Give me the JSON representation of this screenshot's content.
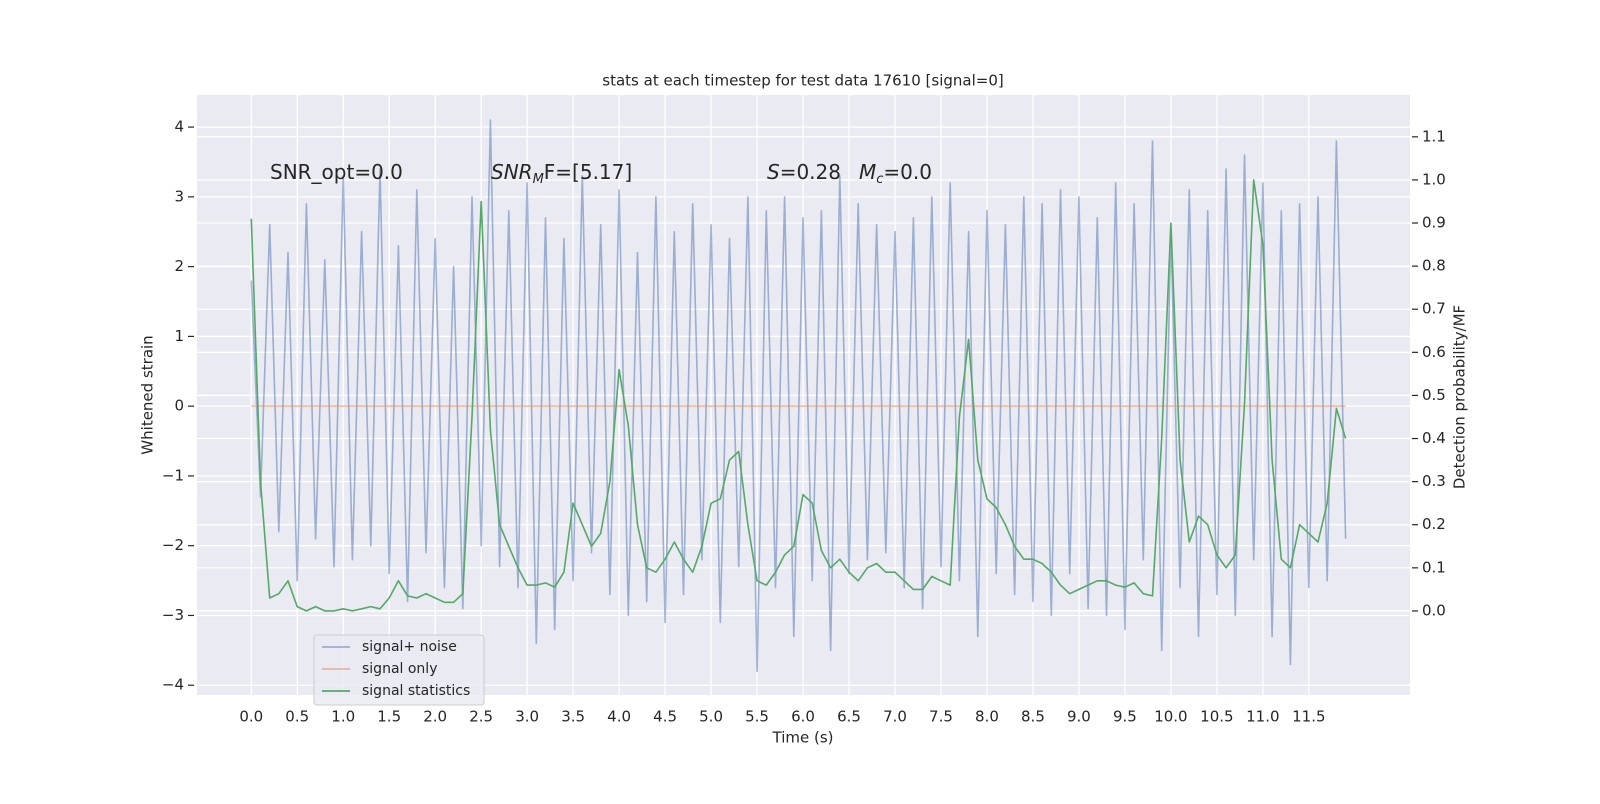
{
  "chart_data": {
    "type": "line",
    "title": "stats at each timestep for test data 17610 [signal=0]",
    "x_label": "Time (s)",
    "y_label": "Whitened strain",
    "y2_label": "Detection probability/MF",
    "annotations": [
      {
        "text": "SNR_opt=0.0"
      },
      {
        "base": "SNR",
        "sub": "M",
        "rest": "F=[5.17]"
      },
      {
        "base": "S",
        "rest": "=0.28"
      },
      {
        "base": "M",
        "sub": "c",
        "rest": "=0.0"
      }
    ],
    "x": [
      0,
      0.1,
      0.2,
      0.3,
      0.4,
      0.5,
      0.6,
      0.7,
      0.8,
      0.9,
      1,
      1.1,
      1.2,
      1.3,
      1.4,
      1.5,
      1.6,
      1.7,
      1.8,
      1.9,
      2,
      2.1,
      2.2,
      2.3,
      2.4,
      2.5,
      2.6,
      2.7,
      2.8,
      2.9,
      3,
      3.1,
      3.2,
      3.3,
      3.4,
      3.5,
      3.6,
      3.7,
      3.8,
      3.9,
      4,
      4.1,
      4.2,
      4.3,
      4.4,
      4.5,
      4.6,
      4.7,
      4.8,
      4.9,
      5,
      5.1,
      5.2,
      5.3,
      5.4,
      5.5,
      5.6,
      5.7,
      5.8,
      5.9,
      6,
      6.1,
      6.2,
      6.3,
      6.4,
      6.5,
      6.6,
      6.7,
      6.8,
      6.9,
      7,
      7.1,
      7.2,
      7.3,
      7.4,
      7.5,
      7.6,
      7.7,
      7.8,
      7.9,
      8,
      8.1,
      8.2,
      8.3,
      8.4,
      8.5,
      8.6,
      8.7,
      8.8,
      8.9,
      9,
      9.1,
      9.2,
      9.3,
      9.4,
      9.5,
      9.6,
      9.7,
      9.8,
      9.9,
      10,
      10.1,
      10.2,
      10.3,
      10.4,
      10.5,
      10.6,
      10.7,
      10.8,
      10.9,
      11,
      11.1,
      11.2,
      11.3,
      11.4,
      11.5,
      11.6,
      11.7,
      11.8,
      11.9
    ],
    "series": [
      {
        "name": "signal+ noise",
        "color": "#4c72b0",
        "opacity": 0.5,
        "values": [
          1.8,
          -1.3,
          2.6,
          -1.8,
          2.2,
          -2.5,
          2.9,
          -1.9,
          2.1,
          -2.3,
          3.3,
          -2.2,
          2.5,
          -2.0,
          3.4,
          -2.4,
          2.3,
          -2.8,
          3.1,
          -2.1,
          2.4,
          -2.6,
          2.0,
          -2.9,
          3.0,
          -2.0,
          4.1,
          -2.3,
          2.8,
          -2.6,
          3.2,
          -3.4,
          2.7,
          -3.2,
          2.4,
          -2.5,
          3.3,
          -2.1,
          2.6,
          -2.7,
          3.1,
          -3.0,
          2.2,
          -2.8,
          3.0,
          -3.1,
          2.5,
          -2.7,
          2.9,
          -2.2,
          2.6,
          -3.1,
          2.4,
          -2.3,
          3.0,
          -3.8,
          2.8,
          -2.6,
          3.0,
          -3.3,
          2.7,
          -2.5,
          2.8,
          -3.5,
          3.3,
          -2.4,
          2.9,
          -2.2,
          2.6,
          -2.1,
          2.5,
          -2.6,
          2.7,
          -2.9,
          3.0,
          -2.3,
          3.2,
          -2.5,
          2.5,
          -3.3,
          2.8,
          -2.4,
          2.6,
          -2.7,
          3.0,
          -2.8,
          2.9,
          -3.0,
          3.1,
          -2.4,
          3.0,
          -2.9,
          2.7,
          -3.0,
          3.2,
          -3.2,
          2.9,
          -2.2,
          3.8,
          -3.5,
          2.5,
          -2.6,
          3.1,
          -3.3,
          2.8,
          -2.7,
          3.4,
          -3.0,
          3.6,
          -2.2,
          3.2,
          -3.3,
          2.8,
          -3.7,
          2.9,
          -2.6,
          3.0,
          -2.5,
          3.8,
          -1.9
        ]
      },
      {
        "name": "signal only",
        "color": "#dd8452",
        "opacity": 0.5,
        "values": [
          0,
          0,
          0,
          0,
          0,
          0,
          0,
          0,
          0,
          0,
          0,
          0,
          0,
          0,
          0,
          0,
          0,
          0,
          0,
          0,
          0,
          0,
          0,
          0,
          0,
          0,
          0,
          0,
          0,
          0,
          0,
          0,
          0,
          0,
          0,
          0,
          0,
          0,
          0,
          0,
          0,
          0,
          0,
          0,
          0,
          0,
          0,
          0,
          0,
          0,
          0,
          0,
          0,
          0,
          0,
          0,
          0,
          0,
          0,
          0,
          0,
          0,
          0,
          0,
          0,
          0,
          0,
          0,
          0,
          0,
          0,
          0,
          0,
          0,
          0,
          0,
          0,
          0,
          0,
          0,
          0,
          0,
          0,
          0,
          0,
          0,
          0,
          0,
          0,
          0,
          0,
          0,
          0,
          0,
          0,
          0,
          0,
          0,
          0,
          0,
          0,
          0,
          0,
          0,
          0,
          0,
          0,
          0,
          0,
          0,
          0,
          0,
          0,
          0,
          0,
          0,
          0,
          0,
          0,
          0
        ]
      },
      {
        "name": "signal statistics",
        "color": "#55a868",
        "opacity": 1,
        "axis": "y2",
        "values": [
          0.91,
          0.3,
          0.03,
          0.04,
          0.07,
          0.01,
          0.0,
          0.01,
          0.0,
          0.0,
          0.005,
          0.0,
          0.005,
          0.01,
          0.005,
          0.03,
          0.07,
          0.035,
          0.03,
          0.04,
          0.03,
          0.02,
          0.02,
          0.04,
          0.45,
          0.95,
          0.42,
          0.2,
          0.15,
          0.1,
          0.06,
          0.06,
          0.065,
          0.055,
          0.09,
          0.25,
          0.2,
          0.15,
          0.18,
          0.3,
          0.56,
          0.43,
          0.2,
          0.1,
          0.09,
          0.12,
          0.16,
          0.12,
          0.09,
          0.15,
          0.25,
          0.26,
          0.35,
          0.37,
          0.2,
          0.07,
          0.06,
          0.09,
          0.13,
          0.15,
          0.27,
          0.25,
          0.14,
          0.1,
          0.12,
          0.09,
          0.07,
          0.1,
          0.11,
          0.09,
          0.09,
          0.07,
          0.05,
          0.05,
          0.08,
          0.07,
          0.06,
          0.45,
          0.63,
          0.35,
          0.26,
          0.24,
          0.2,
          0.15,
          0.12,
          0.12,
          0.11,
          0.09,
          0.06,
          0.04,
          0.05,
          0.06,
          0.07,
          0.07,
          0.06,
          0.055,
          0.065,
          0.04,
          0.035,
          0.4,
          0.9,
          0.35,
          0.16,
          0.22,
          0.2,
          0.13,
          0.1,
          0.13,
          0.48,
          1.0,
          0.85,
          0.35,
          0.12,
          0.1,
          0.2,
          0.18,
          0.16,
          0.25,
          0.47,
          0.4
        ]
      }
    ],
    "xlim": [
      -0.59,
      12.6
    ],
    "ylim": [
      -4.14,
      4.46
    ],
    "y2lim": [
      -0.195,
      1.197
    ],
    "xticks": [
      {
        "value": 0,
        "label": "0.0"
      },
      0.5,
      {
        "value": 1,
        "label": "1.0"
      },
      1.5,
      {
        "value": 2,
        "label": "2.0"
      },
      2.5,
      {
        "value": 3,
        "label": "3.0"
      },
      3.5,
      {
        "value": 4,
        "label": "4.0"
      },
      4.5,
      {
        "value": 5,
        "label": "5.0"
      },
      5.5,
      {
        "value": 6,
        "label": "6.0"
      },
      6.5,
      {
        "value": 7,
        "label": "7.0"
      },
      7.5,
      {
        "value": 8,
        "label": "8.0"
      },
      8.5,
      {
        "value": 9,
        "label": "9.0"
      },
      9.5,
      {
        "value": 10,
        "label": "10.0"
      },
      10.5,
      {
        "value": 11,
        "label": "11.0"
      },
      11.5
    ],
    "yticks": [
      {
        "value": -4,
        "label": "−4"
      },
      {
        "value": -3,
        "label": "−3"
      },
      {
        "value": -2,
        "label": "−2"
      },
      {
        "value": -1,
        "label": "−1"
      },
      0,
      1,
      2,
      3,
      4
    ],
    "y2ticks": [
      {
        "value": 0,
        "label": "0.0"
      },
      0.1,
      0.2,
      0.3,
      0.4,
      0.5,
      0.6,
      0.7,
      0.8,
      0.9,
      {
        "value": 1,
        "label": "1.0"
      },
      1.1
    ],
    "grid": true,
    "legend": "lower left"
  }
}
